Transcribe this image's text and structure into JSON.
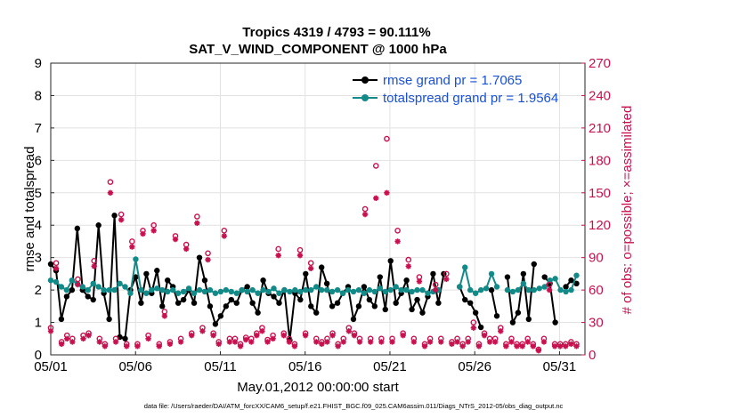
{
  "chart_data": {
    "type": "line",
    "title_line1": "Tropics 4319 / 4793 = 90.111%",
    "title_line2": "SAT_V_WIND_COMPONENT @ 1000 hPa",
    "xlabel": "May.01,2012 00:00:00 start",
    "ylabel": "rmse and totalspread",
    "ylabel_right": "# of obs: o=possible; ×=assimilated",
    "footnote": "data file: /Users/raeder/DAI/ATM_forcXX/CAM6_setup/f.e21.FHIST_BGC.f09_025.CAM6assim.011/Diags_NTrS_2012-05/obs_diag_output.nc",
    "xlim": [
      0,
      31.5
    ],
    "ylim": [
      0,
      9
    ],
    "ylim_right": [
      0,
      270
    ],
    "x_ticks": [
      {
        "x": 0,
        "label": "05/01"
      },
      {
        "x": 5,
        "label": "05/06"
      },
      {
        "x": 10,
        "label": "05/11"
      },
      {
        "x": 15,
        "label": "05/16"
      },
      {
        "x": 20,
        "label": "05/21"
      },
      {
        "x": 25,
        "label": "05/26"
      },
      {
        "x": 30,
        "label": "05/31"
      }
    ],
    "y_ticks": [
      "0",
      "1",
      "2",
      "3",
      "4",
      "5",
      "6",
      "7",
      "8",
      "9"
    ],
    "y_ticks_right": [
      "0",
      "30",
      "60",
      "90",
      "120",
      "150",
      "180",
      "210",
      "240",
      "270"
    ],
    "colors": {
      "rmse": "#000000",
      "totalspread": "#128a88",
      "obs": "#c8104e",
      "legend_text": "#1a4fd6"
    },
    "series": [
      {
        "name": "rmse",
        "legend": "rmse grand pr = 1.7065",
        "values": [
          2.8,
          2.6,
          1.1,
          1.8,
          2.0,
          3.9,
          2.0,
          1.8,
          1.7,
          4.0,
          1.9,
          1.1,
          4.3,
          0.55,
          0.5,
          2.0,
          2.4,
          1.6,
          2.5,
          1.9,
          2.6,
          1.5,
          2.3,
          2.1,
          1.6,
          1.7,
          2.0,
          1.6,
          3.0,
          2.3,
          1.5,
          0.95,
          1.2,
          1.5,
          1.7,
          1.6,
          2.0,
          2.1,
          1.6,
          1.3,
          2.3,
          1.9,
          1.8,
          1.6,
          2.0,
          0.45,
          1.9,
          1.7,
          2.5,
          1.5,
          1.3,
          2.7,
          2.2,
          1.5,
          1.6,
          1.9,
          2.1,
          1.1,
          1.5,
          2.1,
          1.7,
          1.5,
          2.4,
          1.4,
          2.9,
          1.6,
          1.9,
          2.3,
          1.4,
          1.7,
          1.3,
          1.8,
          2.5,
          1.6,
          2.5,
          null,
          null,
          2.1,
          1.7,
          1.6,
          1.3,
          0.85,
          null,
          2.0,
          1.2,
          null,
          2.4,
          1.0,
          1.3,
          2.5,
          1.1,
          2.8,
          null,
          2.4,
          2.2,
          1.0,
          null,
          2.1,
          2.3,
          2.2
        ]
      },
      {
        "name": "totalspread",
        "legend": "totalspread grand pr = 1.9564",
        "values": [
          2.3,
          2.25,
          2.1,
          2.0,
          2.3,
          2.2,
          2.1,
          2.0,
          2.2,
          2.1,
          2.0,
          2.0,
          2.0,
          2.2,
          2.1,
          1.9,
          2.95,
          2.0,
          1.9,
          2.0,
          2.05,
          2.0,
          1.95,
          2.0,
          1.9,
          1.95,
          2.05,
          1.9,
          2.0,
          1.95,
          2.0,
          1.9,
          1.95,
          2.0,
          1.95,
          1.9,
          2.0,
          1.95,
          2.0,
          1.9,
          2.0,
          1.95,
          2.05,
          1.9,
          2.0,
          1.95,
          2.0,
          1.95,
          2.0,
          2.0,
          2.1,
          2.0,
          2.0,
          1.95,
          2.0,
          1.9,
          2.0,
          1.95,
          2.0,
          1.9,
          2.0,
          1.95,
          2.05,
          1.95,
          2.0,
          2.1,
          2.0,
          2.0,
          1.95,
          2.0,
          2.0,
          1.9,
          1.95,
          2.0,
          null,
          null,
          null,
          2.1,
          2.7,
          2.0,
          1.9,
          2.0,
          2.05,
          2.5,
          2.1,
          null,
          2.0,
          1.95,
          2.0,
          2.2,
          2.0,
          2.0,
          2.05,
          2.1,
          2.3,
          2.35,
          2.0,
          1.95,
          2.0,
          2.45
        ]
      },
      {
        "name": "obs_possible",
        "legend": "possible (o)",
        "values": [
          25,
          85,
          12,
          18,
          15,
          70,
          18,
          20,
          87,
          15,
          10,
          160,
          15,
          130,
          10,
          105,
          10,
          115,
          18,
          120,
          10,
          40,
          12,
          110,
          15,
          102,
          20,
          128,
          25,
          94,
          20,
          12,
          115,
          15,
          15,
          10,
          16,
          15,
          20,
          25,
          14,
          18,
          98,
          20,
          15,
          10,
          97,
          20,
          85,
          15,
          12,
          15,
          20,
          10,
          15,
          25,
          20,
          15,
          135,
          15,
          175,
          15,
          200,
          15,
          115,
          20,
          88,
          15,
          72,
          10,
          15,
          65,
          15,
          75,
          12,
          15,
          10,
          15,
          30,
          10,
          20,
          15,
          15,
          25,
          10,
          15,
          10,
          10,
          15,
          10,
          5,
          15,
          65,
          10,
          10,
          10,
          12,
          10
        ]
      },
      {
        "name": "obs_assimilated",
        "legend": "assimilated (×)",
        "values": [
          22,
          80,
          10,
          15,
          12,
          65,
          15,
          18,
          82,
          12,
          8,
          150,
          12,
          125,
          8,
          100,
          8,
          112,
          15,
          115,
          8,
          36,
          10,
          107,
          12,
          98,
          18,
          122,
          22,
          88,
          18,
          10,
          110,
          12,
          12,
          8,
          14,
          12,
          18,
          22,
          12,
          15,
          92,
          18,
          12,
          8,
          92,
          18,
          80,
          12,
          10,
          12,
          18,
          8,
          12,
          22,
          18,
          12,
          130,
          12,
          145,
          12,
          150,
          12,
          105,
          18,
          82,
          12,
          68,
          8,
          12,
          60,
          12,
          70,
          10,
          12,
          8,
          12,
          25,
          8,
          18,
          12,
          12,
          22,
          8,
          12,
          8,
          8,
          12,
          8,
          4,
          12,
          60,
          8,
          8,
          8,
          10,
          8
        ]
      }
    ]
  }
}
